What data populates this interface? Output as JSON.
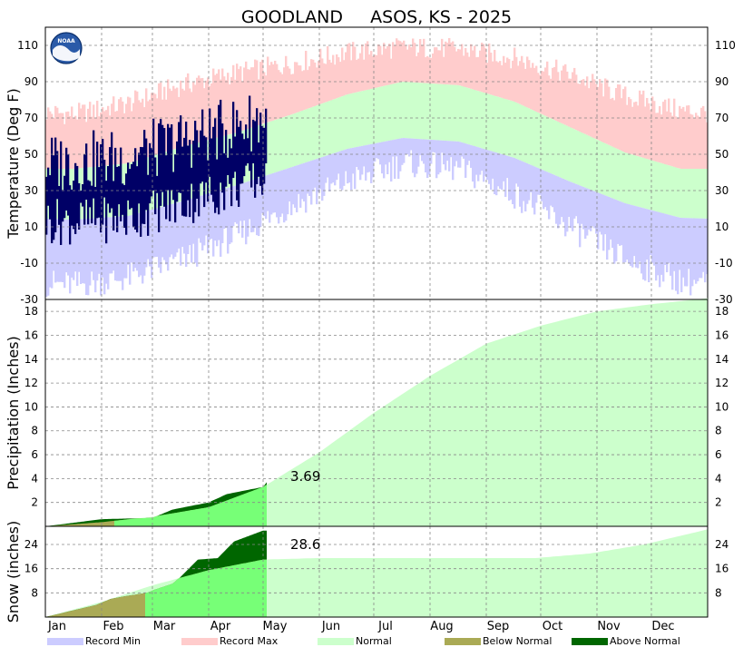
{
  "title": "GOODLAND     ASOS, KS - 2025",
  "logo_text": "NOAA",
  "months": [
    "Jan",
    "Feb",
    "Mar",
    "Apr",
    "May",
    "Jun",
    "Jul",
    "Aug",
    "Sep",
    "Oct",
    "Nov",
    "Dec"
  ],
  "colors": {
    "record_min": "#ccccff",
    "record_max": "#ffcccc",
    "normal": "#ccffcc",
    "below_normal": "#aaaa55",
    "above_normal": "#006600",
    "observed_temp": "#000066",
    "observed_fill": "#77ff77",
    "grid": "#888888"
  },
  "legend": [
    {
      "label": "Record Min",
      "color_key": "record_min"
    },
    {
      "label": "Record Max",
      "color_key": "record_max"
    },
    {
      "label": "Normal",
      "color_key": "normal"
    },
    {
      "label": "Below Normal",
      "color_key": "below_normal"
    },
    {
      "label": "Above Normal",
      "color_key": "above_normal"
    }
  ],
  "chart_data": [
    {
      "type": "area",
      "name": "temperature",
      "ylabel": "Temperature (Deg F)",
      "ylim": [
        -30,
        120
      ],
      "yticks": [
        -30,
        -10,
        10,
        30,
        50,
        70,
        90,
        110
      ],
      "grid": true,
      "normal_high_by_month": [
        42,
        45,
        54,
        62,
        72,
        83,
        90,
        88,
        79,
        65,
        51,
        42
      ],
      "normal_low_by_month": [
        14,
        16,
        24,
        33,
        43,
        53,
        59,
        57,
        48,
        35,
        23,
        15
      ],
      "record_high_approx_by_month": [
        72,
        78,
        88,
        95,
        100,
        106,
        109,
        108,
        103,
        94,
        82,
        74
      ],
      "record_low_approx_by_month": [
        -22,
        -18,
        -8,
        5,
        22,
        35,
        45,
        42,
        28,
        10,
        -8,
        -20
      ],
      "observed_through": "May 1",
      "observed_high_range": [
        30,
        90
      ],
      "observed_low_range": [
        -7,
        45
      ]
    },
    {
      "type": "area",
      "name": "precipitation",
      "ylabel": "Precipitation (Inches)",
      "ylim": [
        0,
        19
      ],
      "yticks": [
        2,
        4,
        6,
        8,
        10,
        12,
        14,
        16,
        18
      ],
      "grid": true,
      "normal_cumulative_by_month_end": [
        0.35,
        0.8,
        1.6,
        3.3,
        6.2,
        9.5,
        12.6,
        15.3,
        16.8,
        18.0,
        18.6,
        19.1
      ],
      "observed_cumulative_points": [
        [
          0,
          0.0
        ],
        [
          31,
          0.6
        ],
        [
          59,
          0.7
        ],
        [
          70,
          1.4
        ],
        [
          90,
          2.0
        ],
        [
          100,
          2.7
        ],
        [
          120,
          3.3
        ],
        [
          122,
          3.69
        ]
      ],
      "observed_total_label": "3.69"
    },
    {
      "type": "area",
      "name": "snow",
      "ylabel": "Snow (inches)",
      "ylim": [
        0,
        30
      ],
      "yticks": [
        8,
        16,
        24
      ],
      "grid": true,
      "normal_cumulative_points": [
        [
          0,
          0.0
        ],
        [
          31,
          5.0
        ],
        [
          59,
          10.5
        ],
        [
          90,
          15.5
        ],
        [
          120,
          19.0
        ],
        [
          150,
          19.5
        ],
        [
          270,
          19.5
        ],
        [
          300,
          21.0
        ],
        [
          330,
          24.0
        ],
        [
          365,
          29.0
        ]
      ],
      "observed_cumulative_points": [
        [
          0,
          0.0
        ],
        [
          28,
          4.0
        ],
        [
          36,
          6.0
        ],
        [
          45,
          7.0
        ],
        [
          56,
          8.0
        ],
        [
          60,
          9.0
        ],
        [
          70,
          11.0
        ],
        [
          74,
          13.0
        ],
        [
          84,
          19.0
        ],
        [
          95,
          19.5
        ],
        [
          104,
          25.0
        ],
        [
          120,
          28.6
        ],
        [
          122,
          28.6
        ]
      ],
      "observed_total_label": "28.6"
    }
  ]
}
